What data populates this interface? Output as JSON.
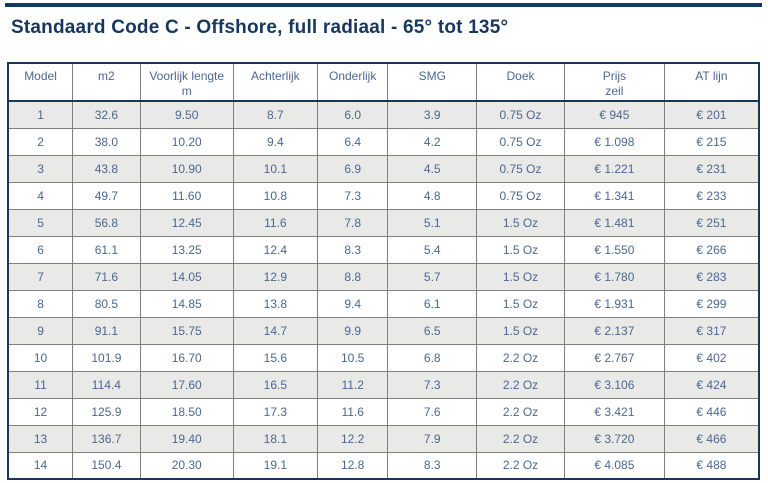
{
  "title": "Standaard Code C - Offshore, full radiaal - 65° tot 135°",
  "table": {
    "headers": [
      "Model",
      "m2",
      "Voorlijk lengte\nm",
      "Achterlijk",
      "Onderlijk",
      "SMG",
      "Doek",
      "Prijs\nzeil",
      "AT lijn"
    ],
    "rows": [
      [
        "1",
        "32.6",
        "9.50",
        "8.7",
        "6.0",
        "3.9",
        "0.75 Oz",
        "€ 945",
        "€ 201"
      ],
      [
        "2",
        "38.0",
        "10.20",
        "9.4",
        "6.4",
        "4.2",
        "0.75 Oz",
        "€ 1.098",
        "€ 215"
      ],
      [
        "3",
        "43.8",
        "10.90",
        "10.1",
        "6.9",
        "4.5",
        "0.75 Oz",
        "€ 1.221",
        "€ 231"
      ],
      [
        "4",
        "49.7",
        "11.60",
        "10.8",
        "7.3",
        "4.8",
        "0.75 Oz",
        "€ 1.341",
        "€ 233"
      ],
      [
        "5",
        "56.8",
        "12.45",
        "11.6",
        "7.8",
        "5.1",
        "1.5 Oz",
        "€ 1.481",
        "€ 251"
      ],
      [
        "6",
        "61.1",
        "13.25",
        "12.4",
        "8.3",
        "5.4",
        "1.5 Oz",
        "€ 1.550",
        "€ 266"
      ],
      [
        "7",
        "71.6",
        "14.05",
        "12.9",
        "8.8",
        "5.7",
        "1.5 Oz",
        "€ 1.780",
        "€ 283"
      ],
      [
        "8",
        "80.5",
        "14.85",
        "13.8",
        "9.4",
        "6.1",
        "1.5 Oz",
        "€ 1.931",
        "€ 299"
      ],
      [
        "9",
        "91.1",
        "15.75",
        "14.7",
        "9.9",
        "6.5",
        "1.5 Oz",
        "€ 2.137",
        "€ 317"
      ],
      [
        "10",
        "101.9",
        "16.70",
        "15.6",
        "10.5",
        "6.8",
        "2.2 Oz",
        "€ 2.767",
        "€ 402"
      ],
      [
        "11",
        "114.4",
        "17.60",
        "16.5",
        "11.2",
        "7.3",
        "2.2 Oz",
        "€ 3.106",
        "€ 424"
      ],
      [
        "12",
        "125.9",
        "18.50",
        "17.3",
        "11.6",
        "7.6",
        "2.2 Oz",
        "€ 3.421",
        "€ 446"
      ],
      [
        "13",
        "136.7",
        "19.40",
        "18.1",
        "12.2",
        "7.9",
        "2.2 Oz",
        "€ 3.720",
        "€ 466"
      ],
      [
        "14",
        "150.4",
        "20.30",
        "19.1",
        "12.8",
        "8.3",
        "2.2 Oz",
        "€ 4.085",
        "€ 488"
      ]
    ]
  },
  "colors": {
    "accent_navy": "#17375E",
    "cell_text": "#4C678F",
    "alt_row_bg": "#E9E9E7",
    "grid_line": "#7F7F7F"
  }
}
